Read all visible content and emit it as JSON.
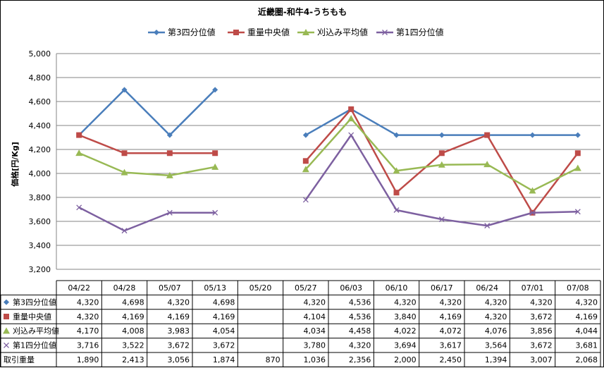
{
  "chart_data": {
    "type": "line",
    "title": "近畿圏-和牛4-うちもも",
    "ylabel": "価格[円/Kg]",
    "xlabel": "",
    "ylim": [
      3200,
      5000
    ],
    "yticks": [
      "3,200",
      "3,400",
      "3,600",
      "3,800",
      "4,000",
      "4,200",
      "4,400",
      "4,600",
      "4,800",
      "5,000"
    ],
    "grid": true,
    "legend_position": "top",
    "categories": [
      "04/22",
      "04/28",
      "05/07",
      "05/13",
      "05/20",
      "05/27",
      "06/03",
      "06/10",
      "06/17",
      "06/24",
      "07/01",
      "07/08"
    ],
    "series": [
      {
        "name": "第3四分位値",
        "color": "#4A7EBB",
        "marker": "diamond",
        "values": [
          4320,
          4698,
          4320,
          4698,
          null,
          4320,
          4536,
          4320,
          4320,
          4320,
          4320,
          4320
        ],
        "labels": [
          "4,320",
          "4,698",
          "4,320",
          "4,698",
          "",
          "4,320",
          "4,536",
          "4,320",
          "4,320",
          "4,320",
          "4,320",
          "4,320"
        ]
      },
      {
        "name": "重量中央値",
        "color": "#BE4B48",
        "marker": "square",
        "values": [
          4320,
          4169,
          4169,
          4169,
          null,
          4104,
          4536,
          3840,
          4169,
          4320,
          3672,
          4169
        ],
        "labels": [
          "4,320",
          "4,169",
          "4,169",
          "4,169",
          "",
          "4,104",
          "4,536",
          "3,840",
          "4,169",
          "4,320",
          "3,672",
          "4,169"
        ]
      },
      {
        "name": "刈込み平均値",
        "color": "#98B954",
        "marker": "triangle",
        "values": [
          4170,
          4008,
          3983,
          4054,
          null,
          4034,
          4458,
          4022,
          4072,
          4076,
          3856,
          4044
        ],
        "labels": [
          "4,170",
          "4,008",
          "3,983",
          "4,054",
          "",
          "4,034",
          "4,458",
          "4,022",
          "4,072",
          "4,076",
          "3,856",
          "4,044"
        ]
      },
      {
        "name": "第1四分位値",
        "color": "#7D60A0",
        "marker": "x",
        "values": [
          3716,
          3522,
          3672,
          3672,
          null,
          3780,
          4320,
          3694,
          3617,
          3564,
          3672,
          3681
        ],
        "labels": [
          "3,716",
          "3,522",
          "3,672",
          "3,672",
          "",
          "3,780",
          "4,320",
          "3,694",
          "3,617",
          "3,564",
          "3,672",
          "3,681"
        ]
      }
    ],
    "extra_rows": [
      {
        "name": "取引重量",
        "labels": [
          "1,890",
          "2,413",
          "3,056",
          "1,874",
          "870",
          "1,036",
          "2,356",
          "2,000",
          "2,450",
          "1,394",
          "3,007",
          "2,068"
        ]
      }
    ]
  }
}
